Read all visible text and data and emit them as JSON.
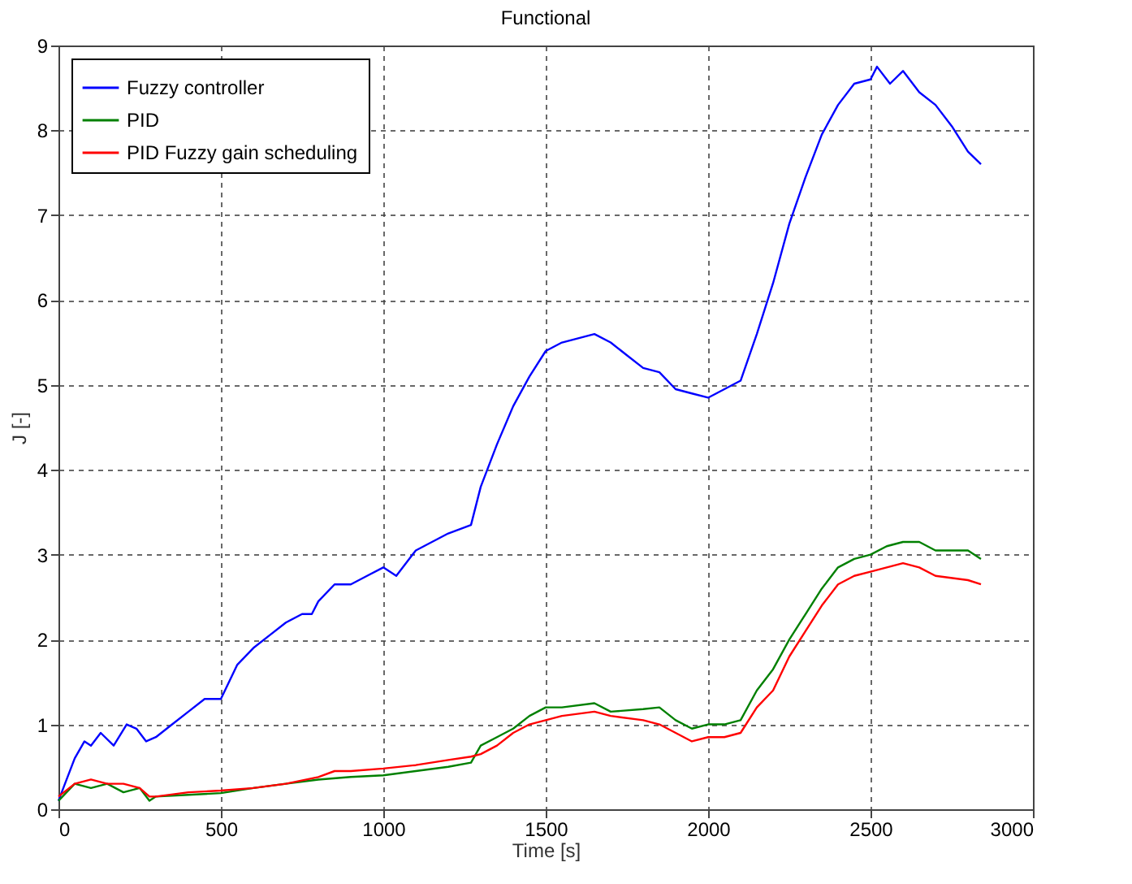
{
  "chart_data": {
    "type": "line",
    "title": "Functional",
    "xlabel": "Time [s]",
    "ylabel": "J [-]",
    "xlim": [
      0,
      3000
    ],
    "xticks": [
      0,
      500,
      1000,
      1500,
      2000,
      2500,
      3000
    ],
    "ylim": [
      0,
      9
    ],
    "yticks": [
      0,
      1,
      2,
      3,
      4,
      5,
      6,
      7,
      8,
      9
    ],
    "grid": true,
    "legend": "top left",
    "series": [
      {
        "name": "Fuzzy controller",
        "color": "#0000ff",
        "x": [
          0,
          20,
          50,
          80,
          100,
          130,
          170,
          210,
          240,
          270,
          300,
          350,
          400,
          450,
          500,
          550,
          600,
          650,
          700,
          750,
          780,
          800,
          850,
          900,
          950,
          1000,
          1040,
          1100,
          1150,
          1200,
          1270,
          1300,
          1350,
          1400,
          1450,
          1500,
          1550,
          1600,
          1650,
          1700,
          1750,
          1800,
          1850,
          1900,
          1950,
          2000,
          2050,
          2100,
          2150,
          2200,
          2250,
          2300,
          2350,
          2400,
          2450,
          2500,
          2520,
          2560,
          2600,
          2650,
          2700,
          2750,
          2800,
          2840
        ],
        "values": [
          0.1,
          0.3,
          0.6,
          0.8,
          0.75,
          0.9,
          0.75,
          1.0,
          0.95,
          0.8,
          0.85,
          1.0,
          1.15,
          1.3,
          1.3,
          1.7,
          1.9,
          2.05,
          2.2,
          2.3,
          2.3,
          2.45,
          2.65,
          2.65,
          2.75,
          2.85,
          2.75,
          3.05,
          3.15,
          3.25,
          3.35,
          3.8,
          4.3,
          4.75,
          5.1,
          5.4,
          5.5,
          5.55,
          5.6,
          5.5,
          5.35,
          5.2,
          5.15,
          4.95,
          4.9,
          4.85,
          4.95,
          5.05,
          5.6,
          6.2,
          6.9,
          7.45,
          7.95,
          8.3,
          8.55,
          8.6,
          8.75,
          8.55,
          8.7,
          8.45,
          8.3,
          8.05,
          7.75,
          7.6
        ]
      },
      {
        "name": "PID",
        "color": "#008000",
        "x": [
          0,
          50,
          100,
          150,
          200,
          250,
          280,
          300,
          400,
          500,
          600,
          700,
          800,
          900,
          1000,
          1100,
          1200,
          1270,
          1300,
          1350,
          1400,
          1450,
          1500,
          1550,
          1650,
          1700,
          1800,
          1850,
          1900,
          1950,
          2000,
          2050,
          2100,
          2150,
          2200,
          2250,
          2300,
          2350,
          2400,
          2450,
          2500,
          2550,
          2600,
          2650,
          2700,
          2800,
          2840
        ],
        "values": [
          0.1,
          0.3,
          0.25,
          0.3,
          0.2,
          0.25,
          0.1,
          0.15,
          0.17,
          0.19,
          0.25,
          0.3,
          0.35,
          0.38,
          0.4,
          0.45,
          0.5,
          0.55,
          0.75,
          0.85,
          0.95,
          1.1,
          1.2,
          1.2,
          1.25,
          1.15,
          1.18,
          1.2,
          1.05,
          0.95,
          1.0,
          1.0,
          1.05,
          1.4,
          1.65,
          2.0,
          2.3,
          2.6,
          2.85,
          2.95,
          3.0,
          3.1,
          3.15,
          3.15,
          3.05,
          3.05,
          2.95
        ]
      },
      {
        "name": "PID Fuzzy gain scheduling",
        "color": "#ff0000",
        "x": [
          0,
          50,
          100,
          150,
          200,
          250,
          280,
          300,
          400,
          500,
          600,
          700,
          800,
          850,
          900,
          1000,
          1100,
          1200,
          1270,
          1300,
          1350,
          1400,
          1450,
          1500,
          1550,
          1650,
          1700,
          1800,
          1850,
          1900,
          1950,
          2000,
          2050,
          2100,
          2150,
          2200,
          2250,
          2300,
          2350,
          2400,
          2450,
          2500,
          2550,
          2600,
          2650,
          2700,
          2800,
          2840
        ],
        "values": [
          0.15,
          0.3,
          0.35,
          0.3,
          0.3,
          0.25,
          0.15,
          0.15,
          0.2,
          0.22,
          0.25,
          0.3,
          0.38,
          0.45,
          0.45,
          0.48,
          0.52,
          0.58,
          0.62,
          0.65,
          0.75,
          0.9,
          1.0,
          1.05,
          1.1,
          1.15,
          1.1,
          1.05,
          1.0,
          0.9,
          0.8,
          0.85,
          0.85,
          0.9,
          1.2,
          1.4,
          1.8,
          2.1,
          2.4,
          2.65,
          2.75,
          2.8,
          2.85,
          2.9,
          2.85,
          2.75,
          2.7,
          2.65
        ]
      }
    ]
  }
}
